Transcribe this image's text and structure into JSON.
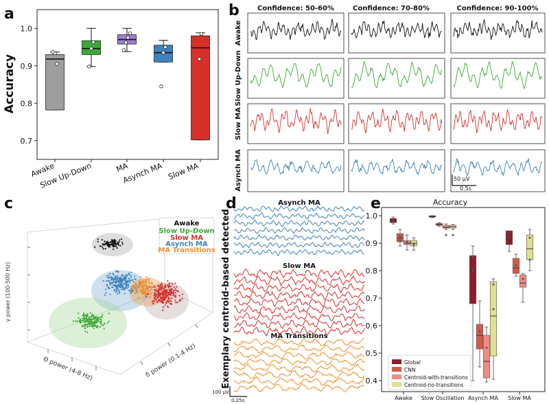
{
  "panels": {
    "a": "a",
    "b": "b",
    "c": "c",
    "d": "d",
    "e": "e"
  },
  "colors": {
    "awake": "#9e9e9e",
    "slow_ud": "#3aaa35",
    "ma": "#9b7fd4",
    "asynch": "#3d82c0",
    "slow_ma": "#d6302b",
    "trace_black": "#111111",
    "trace_green": "#3aaa35",
    "trace_red": "#d6302b",
    "trace_blue": "#3d82c0",
    "trace_orange": "#f0902b",
    "global": "#8b1e2e",
    "cnn": "#d65a4a",
    "cwt": "#ee8c86",
    "cnt": "#dfe191"
  },
  "chart_data": [
    {
      "id": "a",
      "type": "box",
      "ylabel": "Accuracy",
      "ylim": [
        0.65,
        1.05
      ],
      "yticks": [
        "0.7",
        "0.8",
        "0.9",
        "1.0"
      ],
      "ytick_values": [
        0.7,
        0.8,
        0.9,
        1.0
      ],
      "categories": [
        "Awake",
        "Slow Up-Down",
        "MA",
        "Asynch MA",
        "Slow MA"
      ],
      "series": [
        {
          "name": "Awake",
          "q1": 0.782,
          "median": 0.918,
          "q3": 0.93,
          "whislo": 0.782,
          "whishi": 0.937,
          "points": [
            0.937,
            0.933,
            0.905
          ]
        },
        {
          "name": "Slow Up-Down",
          "q1": 0.93,
          "median": 0.946,
          "q3": 0.967,
          "whislo": 0.898,
          "whishi": 1.0,
          "points": [
            0.898,
            0.946,
            0.963
          ]
        },
        {
          "name": "MA",
          "q1": 0.958,
          "median": 0.97,
          "q3": 0.983,
          "whislo": 0.938,
          "whishi": 1.0,
          "points": [
            0.942,
            0.962,
            0.975,
            0.987
          ]
        },
        {
          "name": "Asynch MA",
          "q1": 0.91,
          "median": 0.935,
          "q3": 0.955,
          "whislo": 0.91,
          "whishi": 0.968,
          "points": [
            0.845,
            0.935,
            0.95
          ]
        },
        {
          "name": "Slow MA",
          "q1": 0.702,
          "median": 0.948,
          "q3": 0.98,
          "whislo": 0.702,
          "whishi": 0.988,
          "points": [
            0.918,
            0.985
          ]
        }
      ]
    },
    {
      "id": "b",
      "type": "line",
      "column_titles": [
        "Confidence: 50-60%",
        "Confidence: 70-80%",
        "Confidence: 90-100%"
      ],
      "row_labels": [
        "Awake",
        "Slow Up-Down",
        "Slow MA",
        "Asynch MA"
      ],
      "scale_amplitude": "50 μV",
      "scale_time": "0.5s"
    },
    {
      "id": "c",
      "type": "scatter",
      "axis_y": "γ power (100-500 Hz)",
      "axis_x": "Θ power (4-8 Hz)",
      "axis_z": "δ power (0.1-4 Hz)",
      "legend": [
        "Awake",
        "Slow Up-Down",
        "Slow MA",
        "Asynch MA",
        "MA Transitions"
      ],
      "clusters": [
        {
          "name": "Awake",
          "n": 90
        },
        {
          "name": "Slow Up-Down",
          "n": 170
        },
        {
          "name": "Slow MA",
          "n": 260
        },
        {
          "name": "Asynch MA",
          "n": 240
        },
        {
          "name": "MA Transitions",
          "n": 130
        }
      ]
    },
    {
      "id": "d",
      "type": "line",
      "ylabel": "Exemplary centroid-based detected",
      "groups": [
        "Asynch MA",
        "Slow MA",
        "MA Transitions"
      ],
      "scale_amplitude": "100 μV",
      "scale_time": "0.25s"
    },
    {
      "id": "e",
      "type": "box",
      "title": "Accuracy",
      "ylim": [
        0.36,
        1.03
      ],
      "yticks": [
        "0.4",
        "0.5",
        "0.6",
        "0.7",
        "0.8",
        "0.9",
        "1.0"
      ],
      "ytick_values": [
        0.4,
        0.5,
        0.6,
        0.7,
        0.8,
        0.9,
        1.0
      ],
      "categories": [
        "Awake",
        "Slow Oscillation",
        "Asynch MA",
        "Slow MA"
      ],
      "legend": [
        "Global",
        "CNN",
        "Centroid-with-transitions",
        "Centroid-no-transitions"
      ],
      "series": [
        {
          "name": "Global",
          "boxes": [
            {
              "q1": 0.975,
              "median": 0.98,
              "q3": 0.99,
              "whislo": 0.97,
              "whishi": 0.995,
              "points": [
                0.98
              ]
            },
            {
              "q1": 0.995,
              "median": 0.998,
              "q3": 1.0,
              "whislo": 0.993,
              "whishi": 1.0,
              "points": []
            },
            {
              "q1": 0.68,
              "median": 0.8,
              "q3": 0.855,
              "whislo": 0.4,
              "whishi": 0.89,
              "points": [
                0.8,
                0.85
              ]
            },
            {
              "q1": 0.895,
              "median": 0.925,
              "q3": 0.945,
              "whislo": 0.87,
              "whishi": 0.945,
              "points": [
                0.925,
                0.94
              ]
            }
          ]
        },
        {
          "name": "CNN",
          "boxes": [
            {
              "q1": 0.905,
              "median": 0.918,
              "q3": 0.935,
              "whislo": 0.89,
              "whishi": 0.95,
              "points": [
                0.91,
                0.925
              ]
            },
            {
              "q1": 0.965,
              "median": 0.968,
              "q3": 0.972,
              "whislo": 0.962,
              "whishi": 0.975,
              "points": []
            },
            {
              "q1": 0.515,
              "median": 0.565,
              "q3": 0.605,
              "whislo": 0.45,
              "whishi": 0.69,
              "points": [
                0.58
              ]
            },
            {
              "q1": 0.79,
              "median": 0.81,
              "q3": 0.845,
              "whislo": 0.78,
              "whishi": 0.86,
              "points": [
                0.82
              ]
            }
          ]
        },
        {
          "name": "Centroid-with-transitions",
          "boxes": [
            {
              "q1": 0.895,
              "median": 0.9,
              "q3": 0.91,
              "whislo": 0.875,
              "whishi": 0.93,
              "points": [
                0.905
              ]
            },
            {
              "q1": 0.955,
              "median": 0.958,
              "q3": 0.965,
              "whislo": 0.95,
              "whishi": 0.97,
              "points": [
                0.93
              ]
            },
            {
              "q1": 0.41,
              "median": 0.47,
              "q3": 0.565,
              "whislo": 0.395,
              "whishi": 0.595,
              "points": [
                0.52
              ]
            },
            {
              "q1": 0.74,
              "median": 0.755,
              "q3": 0.785,
              "whislo": 0.685,
              "whishi": 0.79,
              "points": [
                0.77
              ]
            }
          ]
        },
        {
          "name": "Centroid-no-transitions",
          "boxes": [
            {
              "q1": 0.89,
              "median": 0.9,
              "q3": 0.91,
              "whislo": 0.875,
              "whishi": 0.92,
              "points": [
                0.895
              ]
            },
            {
              "q1": 0.955,
              "median": 0.96,
              "q3": 0.965,
              "whislo": 0.95,
              "whishi": 0.968,
              "points": [
                0.93
              ]
            },
            {
              "q1": 0.49,
              "median": 0.635,
              "q3": 0.76,
              "whislo": 0.405,
              "whishi": 0.77,
              "points": [
                0.66,
                0.75
              ]
            },
            {
              "q1": 0.84,
              "median": 0.88,
              "q3": 0.93,
              "whislo": 0.8,
              "whishi": 0.95,
              "points": [
                0.84,
                0.92
              ]
            }
          ]
        }
      ]
    }
  ]
}
